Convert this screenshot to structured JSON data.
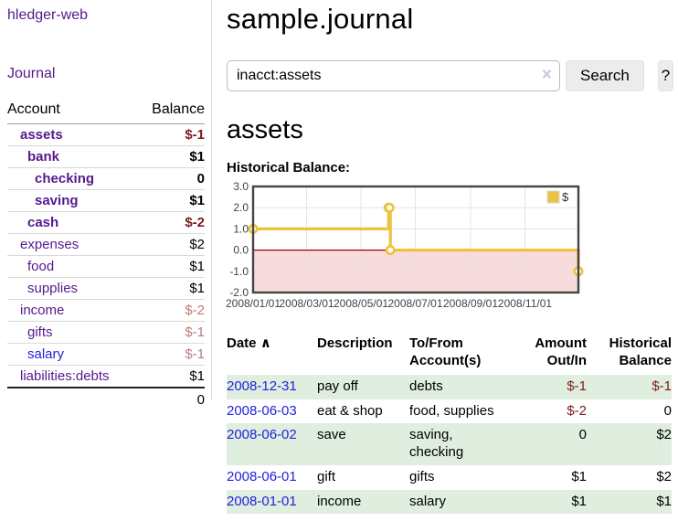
{
  "colors": {
    "link_purple": "#551a8b",
    "link_blue": "#2222dd",
    "negative_strong": "#7d1a1f",
    "negative_soft": "#b87c7c",
    "row_stripe_green": "#dfeede",
    "series_gold": "#edc240",
    "negative_region_pink": "#f8dcdc",
    "zero_line_red": "#a00000"
  },
  "sidebar": {
    "brand": "hledger-web",
    "nav": {
      "journal": "Journal"
    },
    "accounts_table": {
      "headers": {
        "account": "Account",
        "balance": "Balance"
      },
      "rows": [
        {
          "name": "assets",
          "depth": 1,
          "emphasized": true,
          "balance": "$-1",
          "balance_tone": "negative"
        },
        {
          "name": "bank",
          "depth": 2,
          "emphasized": true,
          "balance": "$1",
          "balance_tone": "normal"
        },
        {
          "name": "checking",
          "depth": 3,
          "emphasized": true,
          "balance": "0",
          "balance_tone": "normal"
        },
        {
          "name": "saving",
          "depth": 3,
          "emphasized": true,
          "balance": "$1",
          "balance_tone": "normal"
        },
        {
          "name": "cash",
          "depth": 2,
          "emphasized": true,
          "balance": "$-2",
          "balance_tone": "negative"
        },
        {
          "name": "expenses",
          "depth": 1,
          "emphasized": false,
          "balance": "$2",
          "balance_tone": "normal"
        },
        {
          "name": "food",
          "depth": 2,
          "emphasized": false,
          "balance": "$1",
          "balance_tone": "normal"
        },
        {
          "name": "supplies",
          "depth": 2,
          "emphasized": false,
          "balance": "$1",
          "balance_tone": "normal"
        },
        {
          "name": "income",
          "depth": 1,
          "emphasized": false,
          "balance": "$-2",
          "balance_tone": "negative-soft"
        },
        {
          "name": "gifts",
          "depth": 2,
          "emphasized": false,
          "balance": "$-1",
          "balance_tone": "negative-soft"
        },
        {
          "name": "salary",
          "depth": 2,
          "emphasized": false,
          "balance": "$-1",
          "balance_tone": "negative-soft",
          "link_tone": "unvisited"
        },
        {
          "name": "liabilities:debts",
          "depth": 1,
          "emphasized": false,
          "balance": "$1",
          "balance_tone": "normal"
        }
      ],
      "total": "0"
    }
  },
  "header": {
    "title": "sample.journal"
  },
  "search": {
    "value": "inacct:assets",
    "clear_icon": "×",
    "search_label": "Search",
    "help_label": "?"
  },
  "account_page": {
    "title": "assets",
    "chart_label": "Historical Balance:"
  },
  "chart_data": {
    "type": "line",
    "step": true,
    "title": "Historical Balance:",
    "series": [
      {
        "name": "$",
        "color": "#edc240",
        "points": [
          [
            "2008-01-01",
            1
          ],
          [
            "2008-06-01",
            2
          ],
          [
            "2008-06-02",
            2
          ],
          [
            "2008-06-03",
            0
          ],
          [
            "2008-12-31",
            -1
          ]
        ]
      }
    ],
    "xlim": [
      "2008-01-01",
      "2008-12-31"
    ],
    "ylim": [
      -2,
      3
    ],
    "y_ticks": [
      "3.0",
      "2.0",
      "1.0",
      "0.0",
      "-1.0",
      "-2.0"
    ],
    "x_ticks": [
      "2008/01/01",
      "2008/03/01",
      "2008/05/01",
      "2008/07/01",
      "2008/09/01",
      "2008/11/01"
    ],
    "legend": {
      "label": "$",
      "position": "top-right"
    },
    "grid": true,
    "negative_region_fill": "#f8dcdc",
    "zero_line_color": "#a00000"
  },
  "transactions": {
    "headers": {
      "date": "Date",
      "sort_icon": "∧",
      "description": "Description",
      "accounts": "To/From Account(s)",
      "amount": "Amount Out/In",
      "balance": "Historical Balance"
    },
    "rows": [
      {
        "date": "2008-12-31",
        "description": "pay off",
        "accounts": "debts",
        "amount": "$-1",
        "amount_tone": "negative",
        "balance": "$-1",
        "balance_tone": "negative"
      },
      {
        "date": "2008-06-03",
        "description": "eat & shop",
        "accounts": "food, supplies",
        "amount": "$-2",
        "amount_tone": "negative",
        "balance": "0",
        "balance_tone": "normal"
      },
      {
        "date": "2008-06-02",
        "description": "save",
        "accounts": "saving, checking",
        "amount": "0",
        "amount_tone": "normal",
        "balance": "$2",
        "balance_tone": "normal"
      },
      {
        "date": "2008-06-01",
        "description": "gift",
        "accounts": "gifts",
        "amount": "$1",
        "amount_tone": "normal",
        "balance": "$2",
        "balance_tone": "normal"
      },
      {
        "date": "2008-01-01",
        "description": "income",
        "accounts": "salary",
        "amount": "$1",
        "amount_tone": "normal",
        "balance": "$1",
        "balance_tone": "normal"
      }
    ]
  }
}
